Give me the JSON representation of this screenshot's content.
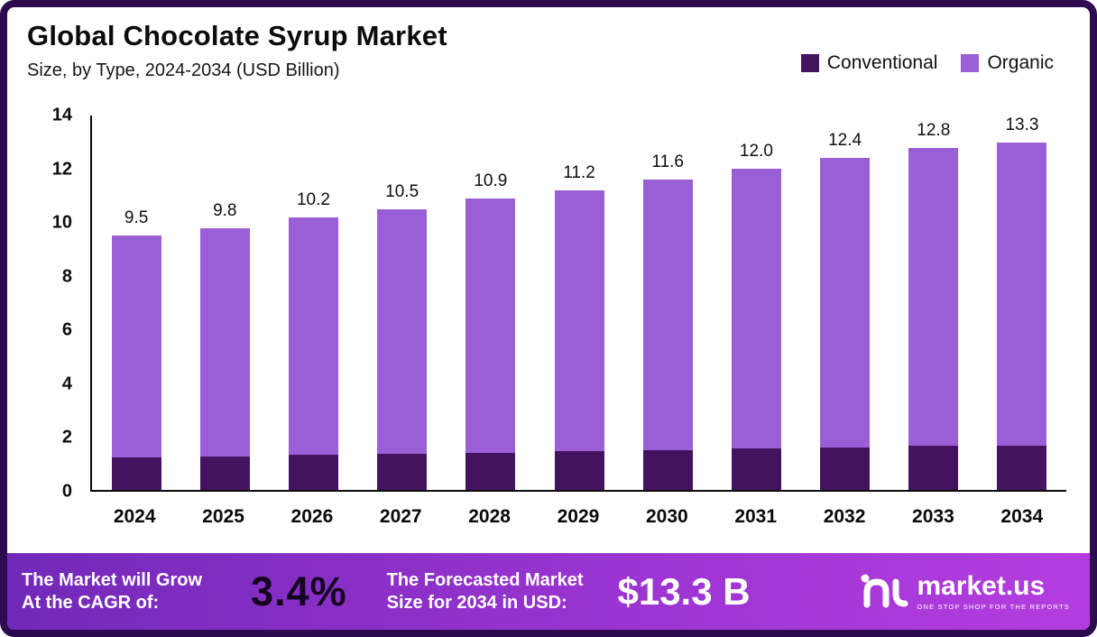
{
  "chart_data": {
    "type": "bar",
    "stacked": true,
    "title": "Global Chocolate Syrup Market",
    "subtitle": "Size, by Type, 2024-2034 (USD Billion)",
    "categories": [
      "2024",
      "2025",
      "2026",
      "2027",
      "2028",
      "2029",
      "2030",
      "2031",
      "2032",
      "2033",
      "2034"
    ],
    "series": [
      {
        "name": "Conventional",
        "color": "#44135f",
        "values": [
          1.2,
          1.25,
          1.3,
          1.35,
          1.4,
          1.45,
          1.5,
          1.55,
          1.6,
          1.65,
          1.7
        ]
      },
      {
        "name": "Organic",
        "color": "#9a5fd6",
        "values": [
          8.3,
          8.55,
          8.9,
          9.15,
          9.5,
          9.75,
          10.1,
          10.45,
          10.8,
          11.15,
          11.6
        ]
      }
    ],
    "totals": [
      9.5,
      9.8,
      10.2,
      10.5,
      10.9,
      11.2,
      11.6,
      12.0,
      12.4,
      12.8,
      13.3
    ],
    "total_labels": [
      "9.5",
      "9.8",
      "10.2",
      "10.5",
      "10.9",
      "11.2",
      "11.6",
      "12.0",
      "12.4",
      "12.8",
      "13.3"
    ],
    "ylim": [
      0,
      14
    ],
    "yticks": [
      0,
      2,
      4,
      6,
      8,
      10,
      12,
      14
    ],
    "grid": false,
    "legend_position": "top-right"
  },
  "footer": {
    "cagr_label": "The Market will Grow\nAt the CAGR of:",
    "cagr_value": "3.4%",
    "forecast_label": "The Forecasted Market\nSize for 2034 in USD:",
    "forecast_value": "$13.3 B",
    "brand": "market.us",
    "brand_tagline": "ONE STOP SHOP FOR THE REPORTS"
  }
}
